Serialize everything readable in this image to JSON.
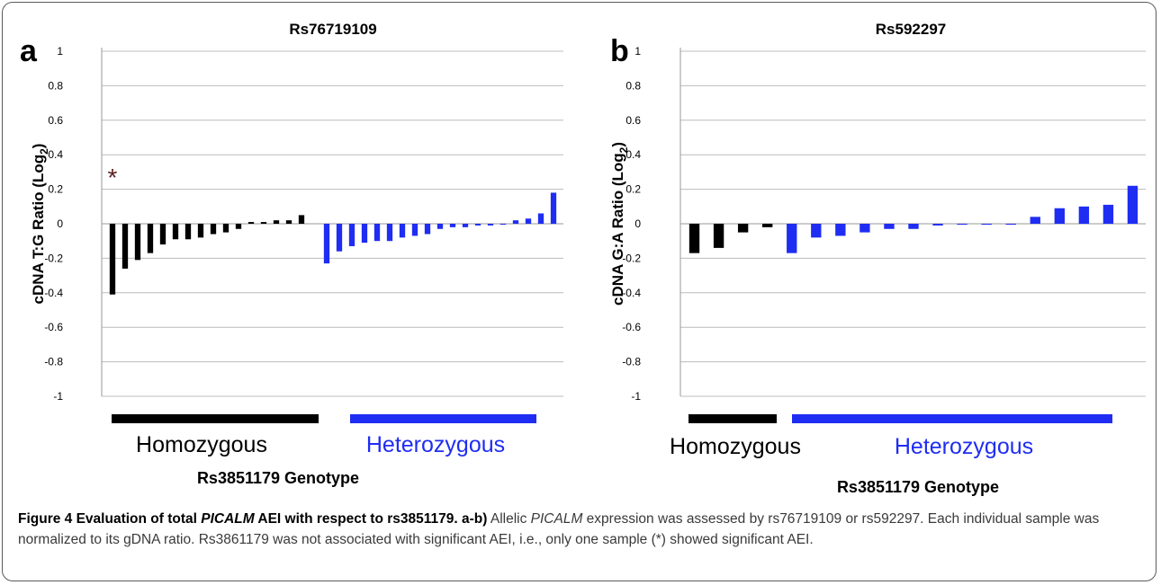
{
  "chart_data": [
    {
      "type": "bar",
      "panel": "a",
      "title": "Rs76719109",
      "ylabel_main": "cDNA T:G Ratio (Log",
      "ylabel_sub": "2",
      "ylabel_end": ")",
      "xlabel": "Rs3851179 Genotype",
      "ylim": [
        -1,
        1
      ],
      "yticks": [
        "1",
        "0.8",
        "0.6",
        "0.4",
        "0.2",
        "0",
        "-0.2",
        "-0.4",
        "-0.6",
        "-0.8",
        "-1"
      ],
      "grid": true,
      "annotation": "*",
      "series": [
        {
          "name": "Homozygous",
          "color": "#000000",
          "values": [
            -0.41,
            -0.26,
            -0.21,
            -0.17,
            -0.12,
            -0.09,
            -0.09,
            -0.08,
            -0.06,
            -0.05,
            -0.03,
            0.01,
            0.01,
            0.02,
            0.02,
            0.05
          ]
        },
        {
          "name": "Heterozygous",
          "color": "#1f2df2",
          "values": [
            -0.23,
            -0.16,
            -0.13,
            -0.11,
            -0.1,
            -0.1,
            -0.08,
            -0.07,
            -0.06,
            -0.03,
            -0.02,
            -0.02,
            -0.01,
            -0.01,
            0.0,
            0.02,
            0.03,
            0.06,
            0.18
          ]
        }
      ]
    },
    {
      "type": "bar",
      "panel": "b",
      "title": "Rs592297",
      "ylabel_main": "cDNA G:A Ratio (Log",
      "ylabel_sub": "2",
      "ylabel_end": ")",
      "xlabel": "Rs3851179 Genotype",
      "ylim": [
        -1,
        1
      ],
      "yticks": [
        "1",
        "0.8",
        "0.6",
        "0.4",
        "0.2",
        "0",
        "-0.2",
        "-0.4",
        "-0.6",
        "-0.8",
        "-1"
      ],
      "grid": true,
      "series": [
        {
          "name": "Homozygous",
          "color": "#000000",
          "values": [
            -0.17,
            -0.14,
            -0.05,
            -0.02
          ]
        },
        {
          "name": "Heterozygous",
          "color": "#1f2df2",
          "values": [
            -0.17,
            -0.08,
            -0.07,
            -0.05,
            -0.03,
            -0.03,
            -0.01,
            0.0,
            0.0,
            0.0,
            0.04,
            0.09,
            0.1,
            0.11,
            0.22
          ]
        }
      ]
    }
  ],
  "caption": {
    "bold_prefix": "Figure 4 Evaluation of total ",
    "bold_gene": "PICALM",
    "bold_suffix": " AEI with respect to rs3851179. a-b)",
    "p1": " Allelic ",
    "gene": "PICALM",
    "p2": " expression was assessed by rs76719109 or rs592297. Each individual sample was normalized to its gDNA ratio. Rs3861179 was not associated with significant AEI, i.e., only one sample (*) showed significant AEI."
  }
}
